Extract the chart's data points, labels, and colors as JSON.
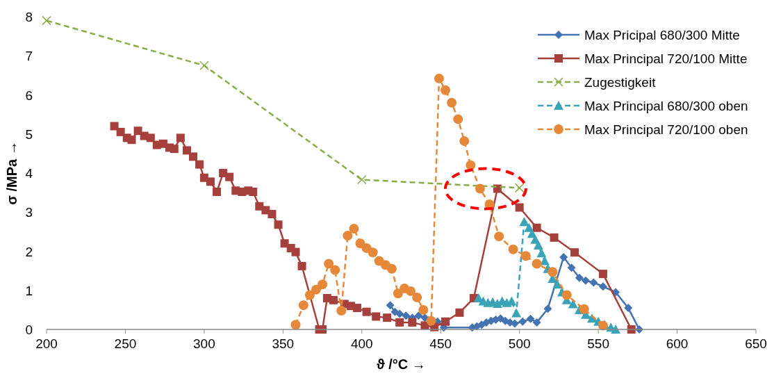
{
  "chart_data": {
    "type": "line",
    "xlabel": "ϑ /°C →",
    "ylabel": "σ /MPa →",
    "xlim": [
      200,
      650
    ],
    "xticks": [
      200,
      250,
      300,
      350,
      400,
      450,
      500,
      550,
      600,
      650
    ],
    "ylim": [
      0,
      8
    ],
    "yticks": [
      0,
      1,
      2,
      3,
      4,
      5,
      6,
      7,
      8
    ],
    "grid": false,
    "legend": "top right",
    "series": [
      {
        "name": "Max Pricipal 680/300 Mitte",
        "color": "#4373b0",
        "marker": "diamond",
        "line_style": "solid",
        "x": [
          418,
          421,
          424,
          428,
          432,
          436,
          440,
          444,
          448,
          452,
          470,
          473,
          476,
          479,
          482,
          485,
          488,
          491,
          494,
          497,
          502,
          507,
          511,
          518,
          528,
          533,
          538,
          542,
          547,
          553,
          561,
          569,
          576
        ],
        "values": [
          0.62,
          0.45,
          0.4,
          0.35,
          0.3,
          0.35,
          0.3,
          0.25,
          0.2,
          0.05,
          0.05,
          0.08,
          0.12,
          0.18,
          0.22,
          0.25,
          0.28,
          0.22,
          0.18,
          0.15,
          0.2,
          0.27,
          0.18,
          0.53,
          1.85,
          1.58,
          1.32,
          1.25,
          1.2,
          1.1,
          0.95,
          0.55,
          0
        ]
      },
      {
        "name": "Max Principal 720/100 Mitte",
        "color": "#a5403d",
        "marker": "square",
        "line_style": "solid",
        "x": [
          243,
          247,
          251,
          254,
          258,
          262,
          266,
          270,
          274,
          278,
          281,
          285,
          289,
          293,
          297,
          300,
          304,
          308,
          312,
          316,
          320,
          324,
          328,
          331,
          335,
          339,
          343,
          347,
          351,
          355,
          358,
          362,
          373,
          375,
          378,
          382,
          389,
          393,
          397,
          403,
          409,
          416,
          424,
          432,
          440,
          446,
          453,
          462,
          471,
          486,
          500,
          511,
          522,
          535,
          553,
          571
        ],
        "values": [
          5.2,
          5.05,
          4.9,
          4.85,
          5.08,
          4.95,
          4.9,
          4.72,
          4.75,
          4.65,
          4.62,
          4.9,
          4.58,
          4.42,
          4.22,
          3.88,
          3.78,
          3.52,
          4.0,
          3.9,
          3.55,
          3.52,
          3.55,
          3.52,
          3.15,
          3.05,
          2.95,
          2.68,
          2.2,
          2.08,
          1.98,
          1.62,
          0,
          0,
          0.8,
          0.75,
          0.65,
          0.6,
          0.55,
          0.45,
          0.33,
          0.3,
          0.18,
          0.18,
          0.1,
          0.06,
          0.2,
          0.43,
          0.8,
          3.6,
          3.12,
          2.6,
          2.35,
          1.97,
          1.42,
          0
        ]
      },
      {
        "name": "Zugestigkeit",
        "color": "#8aac48",
        "marker": "cross",
        "line_style": "dashed",
        "x": [
          200,
          300,
          400,
          500
        ],
        "values": [
          7.9,
          6.75,
          3.83,
          3.62
        ]
      },
      {
        "name": "Max Principal 680/300 oben",
        "color": "#3aa3b8",
        "marker": "triangle",
        "line_style": "dashed",
        "x": [
          474,
          477,
          480,
          483,
          486,
          489,
          492,
          495,
          498,
          503,
          506,
          508,
          510,
          512,
          514,
          516,
          518,
          521,
          524,
          527,
          530,
          534,
          538,
          542,
          546,
          550,
          554,
          558,
          561
        ],
        "values": [
          0.8,
          0.72,
          0.68,
          0.7,
          0.66,
          0.72,
          0.68,
          0.72,
          0.42,
          2.75,
          2.6,
          2.45,
          2.3,
          2.15,
          1.95,
          1.75,
          1.55,
          1.3,
          1.15,
          0.95,
          0.75,
          0.65,
          0.5,
          0.38,
          0.28,
          0.2,
          0.12,
          0.05,
          0
        ]
      },
      {
        "name": "Max Principal 720/100 oben",
        "color": "#e6883a",
        "marker": "circle",
        "line_style": "dashed",
        "x": [
          358,
          363,
          367,
          371,
          375,
          379,
          383,
          387,
          391,
          395,
          399,
          403,
          407,
          411,
          415,
          419,
          423,
          427,
          431,
          435,
          439,
          444,
          449,
          453,
          457,
          461,
          465,
          469,
          475,
          481,
          487,
          496,
          504,
          511,
          521,
          530,
          541,
          553
        ],
        "values": [
          0.12,
          0.62,
          0.88,
          1.02,
          1.15,
          1.68,
          1.52,
          0.48,
          2.4,
          2.58,
          2.2,
          2.08,
          1.97,
          1.75,
          1.65,
          1.55,
          0.92,
          1.05,
          0.98,
          0.82,
          0.5,
          0.22,
          6.42,
          6.12,
          5.8,
          5.38,
          4.82,
          4.2,
          3.6,
          3.2,
          2.38,
          2.05,
          1.88,
          1.68,
          1.47,
          0.88,
          0.52,
          0.1
        ]
      }
    ]
  }
}
